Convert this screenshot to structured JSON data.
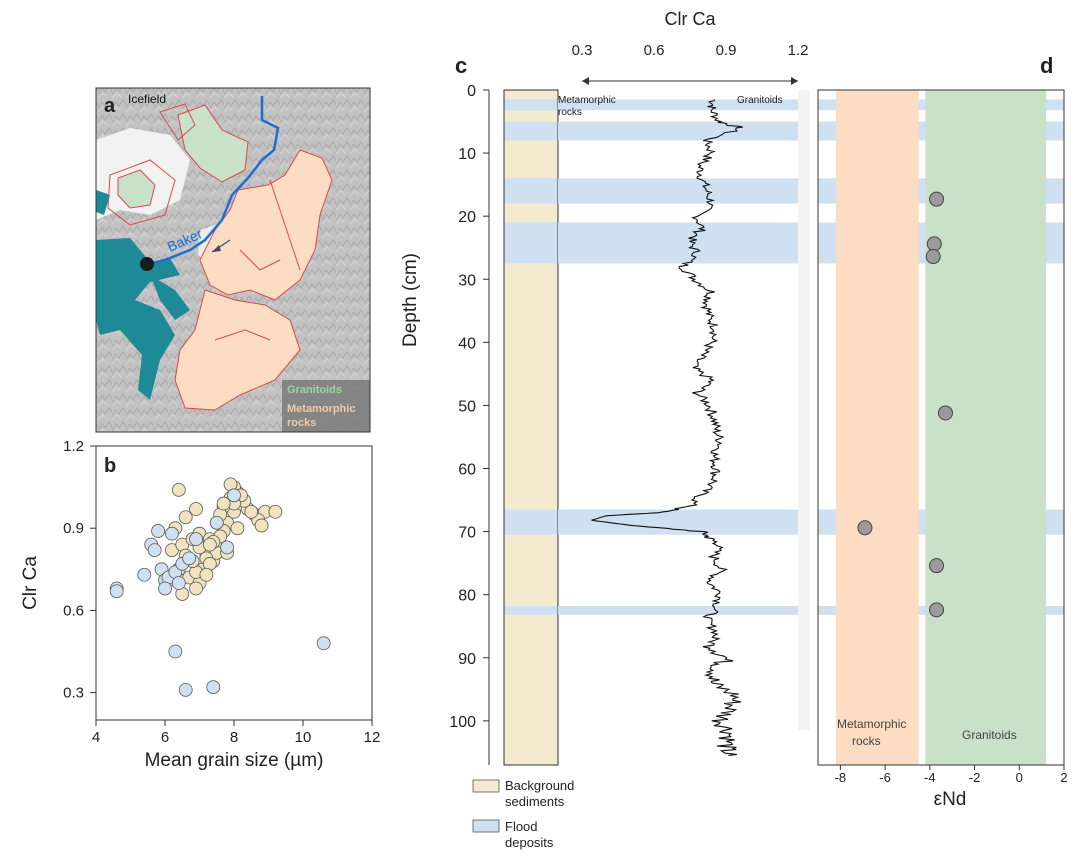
{
  "panels": {
    "a": {
      "letter": "a",
      "labels": {
        "icefield": "Icefield",
        "river": "Baker",
        "granitoids": "Granitoids",
        "metamorphic_l1": "Metamorphic",
        "metamorphic_l2": "rocks"
      }
    },
    "b": {
      "letter": "b"
    },
    "c": {
      "letter": "c",
      "core_annotations": {
        "metamorphic_l1": "Metamorphic",
        "metamorphic_l2": "rocks",
        "granitoids": "Granitoids"
      }
    },
    "d": {
      "letter": "d",
      "field_labels": {
        "metamorphic_l1": "Metamorphic",
        "metamorphic_l2": "rocks",
        "granitoids": "Granitoids"
      }
    }
  },
  "legend": {
    "background_l1": "Background",
    "background_l2": "sediments",
    "flood_l1": "Flood",
    "flood_l2": "deposits"
  },
  "colors": {
    "background_sediments": "#f4ead0",
    "flood_deposits": "#cfe0f1",
    "granitoids": "#c9e0c9",
    "metamorphic": "#fcdcc3",
    "map_water": "#1e8a97",
    "river": "#1c6fd0",
    "marker_grey": "#9b9b9b",
    "blue_point": "#cfe0f1",
    "cream_point": "#efe3c0"
  },
  "chart_data": [
    {
      "panel": "b",
      "type": "scatter",
      "xlabel": "Mean grain size (µm)",
      "ylabel": "Clr Ca",
      "xlim": [
        4,
        12
      ],
      "ylim": [
        0.2,
        1.2
      ],
      "xticks": [
        "4",
        "6",
        "8",
        "10",
        "12"
      ],
      "yticks": [
        "0.3",
        "0.6",
        "0.9",
        "1.2"
      ],
      "series": [
        {
          "name": "Background sediments",
          "color": "#efe3c0",
          "x": [
            6.2,
            6.5,
            6.8,
            7.0,
            7.2,
            7.4,
            7.6,
            7.8,
            8.0,
            8.2,
            6.3,
            6.6,
            6.9,
            7.1,
            7.3,
            7.5,
            7.7,
            7.9,
            8.1,
            8.4,
            6.4,
            6.7,
            7.0,
            7.2,
            7.5,
            7.7,
            8.0,
            8.3,
            8.6,
            8.9,
            6.1,
            6.5,
            6.9,
            7.3,
            7.6,
            7.9,
            8.2,
            8.7,
            9.2,
            6.6,
            7.0,
            7.4,
            7.8,
            8.1,
            6.8,
            7.2,
            7.6,
            8.0,
            6.4,
            6.9,
            7.3,
            7.7,
            8.5,
            8.8
          ],
          "y": [
            0.82,
            0.84,
            0.86,
            0.88,
            0.8,
            0.78,
            0.84,
            0.92,
            0.96,
            0.99,
            0.9,
            0.94,
            0.97,
            0.75,
            0.86,
            0.81,
            0.89,
            1.01,
            1.03,
            0.97,
            0.75,
            0.72,
            0.7,
            0.79,
            0.92,
            0.98,
            1.05,
            1.0,
            0.95,
            0.96,
            0.71,
            0.66,
            0.74,
            0.77,
            0.87,
            1.06,
            1.02,
            0.93,
            0.96,
            0.8,
            0.83,
            0.85,
            0.81,
            0.9,
            0.78,
            0.73,
            0.95,
            0.99,
            1.04,
            0.68,
            0.84,
            0.99,
            0.96,
            0.91
          ]
        },
        {
          "name": "Flood deposits",
          "color": "#cfe0f1",
          "x": [
            4.6,
            4.6,
            5.4,
            5.6,
            5.7,
            5.9,
            6.0,
            6.1,
            6.3,
            6.5,
            6.7,
            6.2,
            5.8,
            6.0,
            6.4,
            7.8,
            8.0,
            6.9,
            7.5,
            6.3,
            6.6,
            7.4,
            10.6
          ],
          "y": [
            0.68,
            0.67,
            0.73,
            0.84,
            0.82,
            0.75,
            0.71,
            0.72,
            0.74,
            0.77,
            0.79,
            0.88,
            0.89,
            0.68,
            0.7,
            0.83,
            1.02,
            0.86,
            0.92,
            0.45,
            0.31,
            0.32,
            0.48
          ]
        }
      ]
    },
    {
      "panel": "c",
      "type": "line",
      "title": "Clr Ca",
      "ylabel": "Depth (cm)",
      "xlim": [
        0.3,
        1.2
      ],
      "ylim": [
        107,
        0
      ],
      "xticks": [
        "0.3",
        "0.6",
        "0.9",
        "1.2"
      ],
      "yticks": [
        "0",
        "10",
        "20",
        "30",
        "40",
        "50",
        "60",
        "70",
        "80",
        "90",
        "100"
      ],
      "profile_anchors": {
        "depth": [
          1.5,
          3,
          5,
          6,
          8,
          10,
          12,
          14,
          16,
          18,
          20,
          22,
          24,
          26,
          28,
          30,
          32,
          34,
          36,
          38,
          40,
          42,
          44,
          46,
          48,
          50,
          52,
          54,
          56,
          58,
          60,
          62,
          64,
          66,
          67,
          67.5,
          68.2,
          69,
          70,
          71,
          72,
          74,
          76,
          78,
          80,
          82,
          84,
          86,
          88,
          90,
          92,
          94,
          96,
          98,
          100,
          102,
          104,
          105.5
        ],
        "value": [
          0.85,
          0.84,
          0.87,
          0.96,
          0.82,
          0.84,
          0.79,
          0.8,
          0.82,
          0.84,
          0.78,
          0.8,
          0.75,
          0.78,
          0.72,
          0.77,
          0.84,
          0.82,
          0.83,
          0.86,
          0.84,
          0.8,
          0.76,
          0.84,
          0.78,
          0.83,
          0.85,
          0.86,
          0.88,
          0.85,
          0.86,
          0.85,
          0.8,
          0.75,
          0.62,
          0.4,
          0.34,
          0.5,
          0.8,
          0.83,
          0.87,
          0.85,
          0.88,
          0.83,
          0.88,
          0.86,
          0.82,
          0.86,
          0.84,
          0.9,
          0.86,
          0.84,
          0.94,
          0.92,
          0.88,
          0.92,
          0.9,
          0.91
        ]
      },
      "flood_layers": [
        [
          1.5,
          3.2
        ],
        [
          5,
          8
        ],
        [
          14,
          18
        ],
        [
          21,
          27.5
        ],
        [
          66.5,
          70.5
        ],
        [
          81.8,
          83.2
        ]
      ],
      "background_layers": [
        [
          3.2,
          5
        ],
        [
          18,
          21
        ]
      ]
    },
    {
      "panel": "d",
      "type": "scatter",
      "xlabel": "εNd",
      "xlim": [
        -9,
        2
      ],
      "xticks": [
        "-8",
        "-6",
        "-4",
        "-2",
        "0",
        "2"
      ],
      "fields": {
        "metamorphic_range": [
          -8.2,
          -4.5
        ],
        "granitoid_range": [
          -4.2,
          1.2
        ]
      },
      "points": [
        {
          "depth": 17.3,
          "end": -3.7
        },
        {
          "depth": 24.4,
          "end": -3.8
        },
        {
          "depth": 26.4,
          "end": -3.85
        },
        {
          "depth": 51.2,
          "end": -3.3
        },
        {
          "depth": 69.4,
          "end": -6.9
        },
        {
          "depth": 75.4,
          "end": -3.7
        },
        {
          "depth": 82.4,
          "end": -3.7
        }
      ]
    }
  ]
}
